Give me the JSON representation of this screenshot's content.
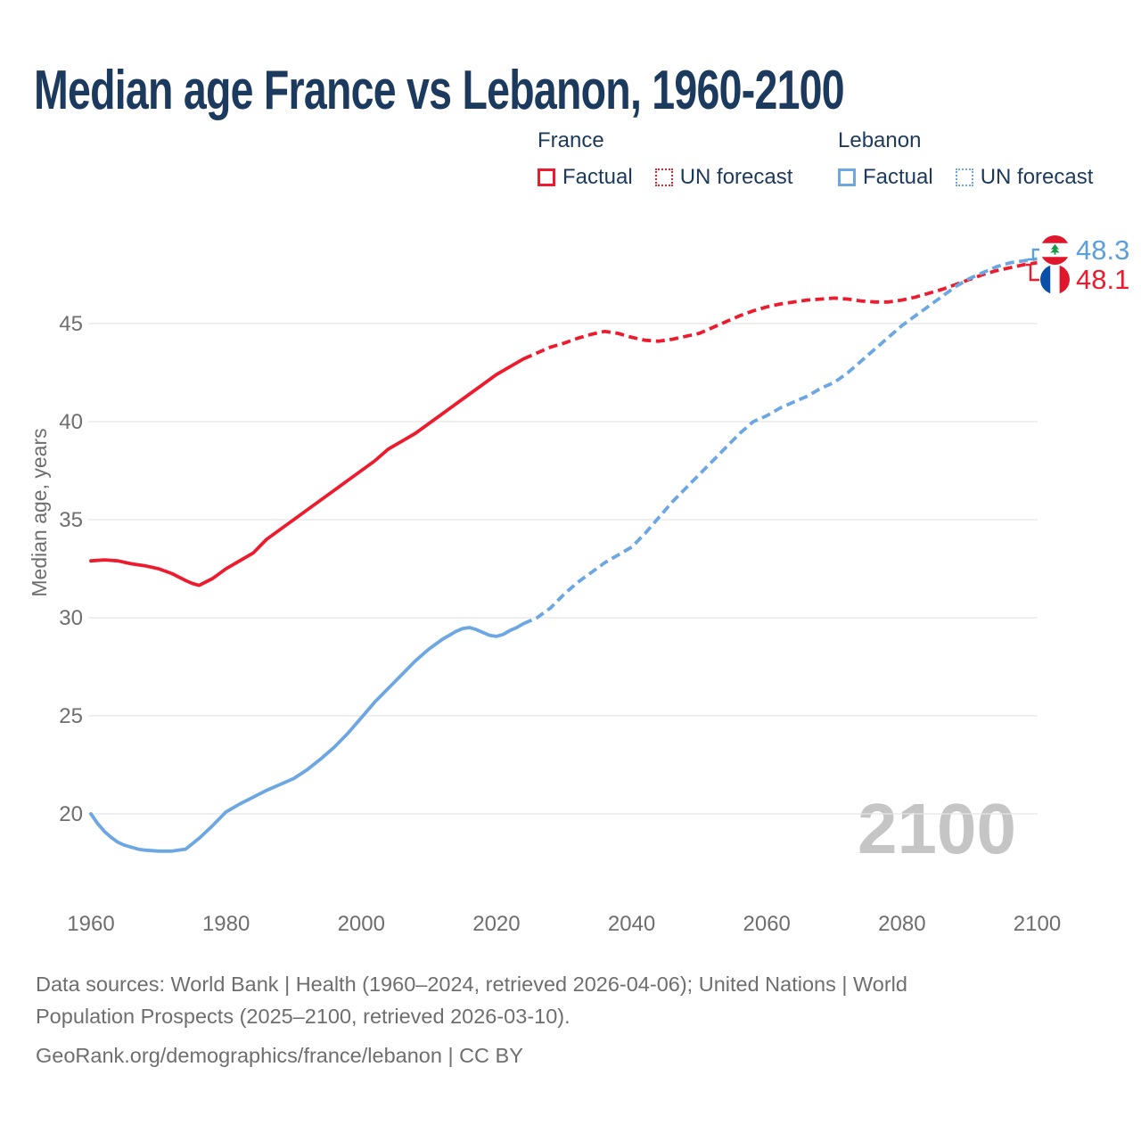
{
  "title": "Median age France vs Lebanon, 1960-2100",
  "watermark": "2100",
  "colors": {
    "france": "#ec1b2d",
    "lebanon": "#6ca7e3",
    "lebanon_label": "#5b9fdd",
    "title_text": "#1c3a5e",
    "axis_text": "#6e6e6e",
    "gridline": "#e5e5e5",
    "watermark": "#c5c5c5"
  },
  "legend": {
    "groups": [
      {
        "name": "France",
        "color": "#ec1b2d",
        "items": [
          {
            "label": "Factual",
            "style": "solid"
          },
          {
            "label": "UN forecast",
            "style": "dotted"
          }
        ]
      },
      {
        "name": "Lebanon",
        "color": "#6ca7e3",
        "items": [
          {
            "label": "Factual",
            "style": "solid"
          },
          {
            "label": "UN forecast",
            "style": "dotted"
          }
        ]
      }
    ]
  },
  "end_labels": [
    {
      "country": "Lebanon",
      "value": "48.3",
      "color": "#5b9fdd",
      "flag": "lebanon"
    },
    {
      "country": "France",
      "value": "48.1",
      "color": "#ec1b2d",
      "flag": "france"
    }
  ],
  "sources": {
    "text": "Data sources: World Bank | Health (1960–2024, retrieved 2026-04-06); United Nations | World Population Prospects (2025–2100, retrieved 2026-03-10).",
    "credit": "GeoRank.org/demographics/france/lebanon | CC BY"
  },
  "chart_data": {
    "type": "line",
    "title": "Median age France vs Lebanon, 1960-2100",
    "xlabel": "",
    "ylabel": "Median age, years",
    "x_ticks": [
      1960,
      1980,
      2000,
      2020,
      2040,
      2060,
      2080,
      2100
    ],
    "y_ticks": [
      45,
      40,
      35,
      30,
      25,
      20
    ],
    "xlim": [
      1960,
      2100
    ],
    "ylim": [
      17.5,
      49.5
    ],
    "grid": "horizontal-only",
    "legend_position": "top-right",
    "series": [
      {
        "name": "France Factual",
        "style": "solid",
        "color": "#ec1b2d",
        "points": [
          [
            1960,
            32.9
          ],
          [
            1962,
            32.95
          ],
          [
            1964,
            32.9
          ],
          [
            1966,
            32.75
          ],
          [
            1968,
            32.65
          ],
          [
            1970,
            32.5
          ],
          [
            1972,
            32.25
          ],
          [
            1974,
            31.9
          ],
          [
            1975,
            31.75
          ],
          [
            1976,
            31.65
          ],
          [
            1978,
            32.0
          ],
          [
            1980,
            32.5
          ],
          [
            1982,
            32.9
          ],
          [
            1984,
            33.3
          ],
          [
            1986,
            34.0
          ],
          [
            1988,
            34.5
          ],
          [
            1990,
            35.0
          ],
          [
            1992,
            35.5
          ],
          [
            1994,
            36.0
          ],
          [
            1996,
            36.5
          ],
          [
            1998,
            37.0
          ],
          [
            2000,
            37.5
          ],
          [
            2002,
            38.0
          ],
          [
            2004,
            38.6
          ],
          [
            2006,
            39.0
          ],
          [
            2008,
            39.4
          ],
          [
            2010,
            39.9
          ],
          [
            2012,
            40.4
          ],
          [
            2014,
            40.9
          ],
          [
            2016,
            41.4
          ],
          [
            2018,
            41.9
          ],
          [
            2020,
            42.4
          ],
          [
            2022,
            42.8
          ],
          [
            2024,
            43.2
          ]
        ]
      },
      {
        "name": "France UN forecast",
        "style": "dashed",
        "color": "#ec1b2d",
        "points": [
          [
            2024,
            43.2
          ],
          [
            2026,
            43.5
          ],
          [
            2028,
            43.8
          ],
          [
            2030,
            44.0
          ],
          [
            2032,
            44.25
          ],
          [
            2034,
            44.45
          ],
          [
            2036,
            44.6
          ],
          [
            2038,
            44.5
          ],
          [
            2040,
            44.3
          ],
          [
            2042,
            44.15
          ],
          [
            2044,
            44.1
          ],
          [
            2046,
            44.2
          ],
          [
            2048,
            44.35
          ],
          [
            2050,
            44.5
          ],
          [
            2052,
            44.8
          ],
          [
            2054,
            45.1
          ],
          [
            2056,
            45.4
          ],
          [
            2058,
            45.65
          ],
          [
            2060,
            45.85
          ],
          [
            2062,
            46.0
          ],
          [
            2064,
            46.1
          ],
          [
            2066,
            46.2
          ],
          [
            2068,
            46.25
          ],
          [
            2070,
            46.3
          ],
          [
            2072,
            46.25
          ],
          [
            2074,
            46.15
          ],
          [
            2076,
            46.1
          ],
          [
            2078,
            46.1
          ],
          [
            2080,
            46.2
          ],
          [
            2082,
            46.35
          ],
          [
            2084,
            46.55
          ],
          [
            2086,
            46.75
          ],
          [
            2088,
            47.0
          ],
          [
            2090,
            47.25
          ],
          [
            2092,
            47.5
          ],
          [
            2094,
            47.7
          ],
          [
            2096,
            47.85
          ],
          [
            2098,
            48.0
          ],
          [
            2100,
            48.1
          ]
        ]
      },
      {
        "name": "Lebanon Factual",
        "style": "solid",
        "color": "#6ca7e3",
        "points": [
          [
            1960,
            20.0
          ],
          [
            1961,
            19.5
          ],
          [
            1962,
            19.1
          ],
          [
            1963,
            18.8
          ],
          [
            1964,
            18.55
          ],
          [
            1965,
            18.4
          ],
          [
            1966,
            18.3
          ],
          [
            1967,
            18.2
          ],
          [
            1968,
            18.15
          ],
          [
            1970,
            18.1
          ],
          [
            1972,
            18.1
          ],
          [
            1974,
            18.2
          ],
          [
            1976,
            18.75
          ],
          [
            1978,
            19.4
          ],
          [
            1980,
            20.1
          ],
          [
            1982,
            20.5
          ],
          [
            1984,
            20.85
          ],
          [
            1986,
            21.2
          ],
          [
            1988,
            21.5
          ],
          [
            1990,
            21.8
          ],
          [
            1992,
            22.25
          ],
          [
            1994,
            22.8
          ],
          [
            1996,
            23.4
          ],
          [
            1998,
            24.1
          ],
          [
            2000,
            24.9
          ],
          [
            2002,
            25.7
          ],
          [
            2004,
            26.4
          ],
          [
            2006,
            27.1
          ],
          [
            2008,
            27.8
          ],
          [
            2010,
            28.4
          ],
          [
            2012,
            28.9
          ],
          [
            2014,
            29.3
          ],
          [
            2015,
            29.45
          ],
          [
            2016,
            29.5
          ],
          [
            2017,
            29.4
          ],
          [
            2018,
            29.25
          ],
          [
            2019,
            29.1
          ],
          [
            2020,
            29.05
          ],
          [
            2021,
            29.15
          ],
          [
            2022,
            29.35
          ],
          [
            2023,
            29.5
          ],
          [
            2024,
            29.7
          ]
        ]
      },
      {
        "name": "Lebanon UN forecast",
        "style": "dashed",
        "color": "#6ca7e3",
        "points": [
          [
            2024,
            29.7
          ],
          [
            2026,
            30.0
          ],
          [
            2028,
            30.5
          ],
          [
            2030,
            31.2
          ],
          [
            2032,
            31.8
          ],
          [
            2034,
            32.3
          ],
          [
            2036,
            32.8
          ],
          [
            2038,
            33.2
          ],
          [
            2040,
            33.6
          ],
          [
            2042,
            34.3
          ],
          [
            2044,
            35.1
          ],
          [
            2046,
            35.9
          ],
          [
            2048,
            36.6
          ],
          [
            2050,
            37.3
          ],
          [
            2052,
            38.0
          ],
          [
            2054,
            38.7
          ],
          [
            2056,
            39.4
          ],
          [
            2058,
            40.0
          ],
          [
            2060,
            40.3
          ],
          [
            2062,
            40.7
          ],
          [
            2064,
            41.0
          ],
          [
            2066,
            41.3
          ],
          [
            2068,
            41.7
          ],
          [
            2070,
            42.0
          ],
          [
            2072,
            42.5
          ],
          [
            2074,
            43.1
          ],
          [
            2076,
            43.7
          ],
          [
            2078,
            44.3
          ],
          [
            2080,
            44.9
          ],
          [
            2082,
            45.4
          ],
          [
            2084,
            45.9
          ],
          [
            2086,
            46.4
          ],
          [
            2088,
            46.9
          ],
          [
            2090,
            47.3
          ],
          [
            2092,
            47.6
          ],
          [
            2094,
            47.9
          ],
          [
            2096,
            48.1
          ],
          [
            2098,
            48.2
          ],
          [
            2100,
            48.3
          ]
        ]
      }
    ]
  }
}
